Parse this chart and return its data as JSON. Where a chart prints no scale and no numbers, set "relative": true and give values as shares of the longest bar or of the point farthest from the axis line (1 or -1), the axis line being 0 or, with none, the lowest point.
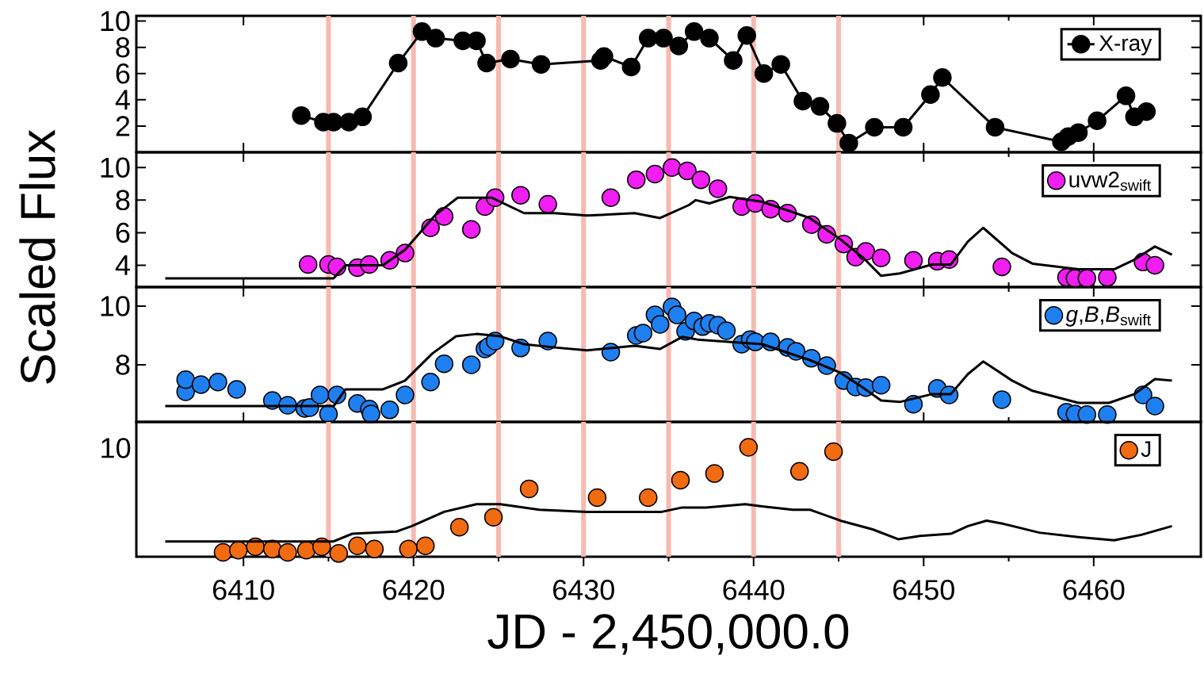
{
  "chart_data": [
    {
      "type": "line",
      "marker": "circle",
      "xlim": [
        6403.7,
        6466.3
      ],
      "ylim": [
        0,
        10.4
      ],
      "xticks": [
        6410,
        6420,
        6430,
        6440,
        6450,
        6460
      ],
      "yticks": [
        2,
        4,
        6,
        8,
        10
      ],
      "tick_labels": "y",
      "legend": "top right",
      "ref_lines": [
        {
          "axis": "x",
          "value": 6415,
          "color": "#f7b9b0"
        },
        {
          "axis": "x",
          "value": 6420,
          "color": "#f7b9b0"
        },
        {
          "axis": "x",
          "value": 6425,
          "color": "#f7b9b0"
        },
        {
          "axis": "x",
          "value": 6430,
          "color": "#f7b9b0"
        },
        {
          "axis": "x",
          "value": 6435,
          "color": "#f7b9b0"
        },
        {
          "axis": "x",
          "value": 6440,
          "color": "#f7b9b0"
        },
        {
          "axis": "x",
          "value": 6445,
          "color": "#f7b9b0"
        }
      ],
      "series": [
        {
          "name": "X-ray",
          "color": "#000000",
          "x": [
            6413.4,
            6414.7,
            6415.3,
            6416.2,
            6417.0,
            6419.1,
            6420.5,
            6421.3,
            6422.9,
            6423.7,
            6424.3,
            6425.7,
            6427.5,
            6431.0,
            6431.2,
            6432.8,
            6433.8,
            6434.7,
            6435.6,
            6436.5,
            6437.4,
            6438.8,
            6439.6,
            6440.6,
            6441.6,
            6442.9,
            6443.9,
            6444.9,
            6445.6,
            6447.1,
            6448.8,
            6450.4,
            6451.1,
            6454.2,
            6458.1,
            6458.5,
            6459.1,
            6460.2,
            6461.9,
            6462.4,
            6463.1
          ],
          "values": [
            2.8,
            2.3,
            2.3,
            2.3,
            2.7,
            6.8,
            9.2,
            8.7,
            8.5,
            8.5,
            6.8,
            7.1,
            6.7,
            7.0,
            7.3,
            6.5,
            8.7,
            8.7,
            8.1,
            9.2,
            8.7,
            7.0,
            8.9,
            6.0,
            6.7,
            3.9,
            3.5,
            2.2,
            0.7,
            1.9,
            1.9,
            4.4,
            5.7,
            1.9,
            0.8,
            1.2,
            1.5,
            2.4,
            4.3,
            2.7,
            3.1
          ]
        }
      ]
    },
    {
      "type": "scatter",
      "marker": "circle",
      "xlim": [
        6403.7,
        6466.3
      ],
      "ylim": [
        2.66,
        10.94
      ],
      "xticks": [
        6410,
        6420,
        6430,
        6440,
        6450,
        6460
      ],
      "yticks": [
        4,
        6,
        8,
        10
      ],
      "tick_labels": "y",
      "legend": "top right",
      "ylabel": "Scaled Flux",
      "ref_lines": [
        {
          "axis": "x",
          "value": 6415,
          "color": "#f7b9b0"
        },
        {
          "axis": "x",
          "value": 6420,
          "color": "#f7b9b0"
        },
        {
          "axis": "x",
          "value": 6425,
          "color": "#f7b9b0"
        },
        {
          "axis": "x",
          "value": 6430,
          "color": "#f7b9b0"
        },
        {
          "axis": "x",
          "value": 6435,
          "color": "#f7b9b0"
        },
        {
          "axis": "x",
          "value": 6440,
          "color": "#f7b9b0"
        },
        {
          "axis": "x",
          "value": 6445,
          "color": "#f7b9b0"
        }
      ],
      "series": [
        {
          "type": "line",
          "marker": "none",
          "color": "#000000",
          "x": [
            6405.4,
            6415.3,
            6416.0,
            6418.2,
            6419.5,
            6421.3,
            6422.6,
            6424.6,
            6426.5,
            6428.3,
            6430.2,
            6433.0,
            6434.5,
            6436.2,
            6436.6,
            6437.4,
            6438.6,
            6440.5,
            6443.3,
            6445.1,
            6446.5,
            6447.5,
            6448.6,
            6450.5,
            6451.6,
            6452.6,
            6453.5,
            6455.2,
            6456.4,
            6459.1,
            6461.2,
            6462.4,
            6463.6,
            6464.6
          ],
          "values": [
            3.2,
            3.2,
            4.0,
            4.0,
            4.95,
            7.1,
            8.15,
            8.15,
            7.2,
            7.2,
            7.05,
            7.2,
            6.9,
            7.7,
            8.0,
            7.8,
            8.2,
            7.9,
            6.9,
            5.6,
            4.4,
            3.35,
            3.5,
            4.05,
            4.05,
            5.45,
            6.3,
            4.75,
            4.1,
            3.75,
            3.75,
            4.35,
            5.15,
            4.65
          ]
        },
        {
          "name": "uvw2$_{swift}$",
          "color": "#f01ef0",
          "x": [
            6413.8,
            6415.0,
            6415.5,
            6416.7,
            6417.4,
            6418.6,
            6419.5,
            6421.0,
            6421.8,
            6423.4,
            6424.2,
            6424.8,
            6426.3,
            6427.9,
            6431.6,
            6433.1,
            6434.2,
            6435.2,
            6436.1,
            6436.9,
            6437.9,
            6439.3,
            6440.1,
            6441.0,
            6442.0,
            6443.4,
            6444.3,
            6445.3,
            6446.0,
            6446.6,
            6447.5,
            6449.4,
            6450.8,
            6451.5,
            6454.6,
            6458.4,
            6458.9,
            6459.6,
            6460.8,
            6462.9,
            6463.6
          ],
          "values": [
            4.05,
            4.05,
            3.9,
            3.85,
            4.05,
            4.3,
            4.75,
            6.3,
            7.0,
            6.2,
            7.6,
            8.15,
            8.3,
            7.75,
            8.15,
            9.25,
            9.6,
            10.0,
            9.8,
            9.25,
            8.7,
            7.6,
            7.8,
            7.45,
            7.2,
            6.5,
            5.9,
            5.3,
            4.5,
            4.85,
            4.45,
            4.3,
            4.25,
            4.35,
            3.9,
            3.25,
            3.2,
            3.2,
            3.25,
            4.2,
            4.0
          ]
        }
      ]
    },
    {
      "type": "scatter",
      "marker": "circle",
      "xlim": [
        6403.7,
        6466.3
      ],
      "ylim": [
        6.05,
        10.65
      ],
      "xticks": [
        6410,
        6420,
        6430,
        6440,
        6450,
        6460
      ],
      "yticks": [
        8,
        10
      ],
      "tick_labels": "y",
      "legend": "top right",
      "ref_lines": [
        {
          "axis": "x",
          "value": 6415,
          "color": "#f7b9b0"
        },
        {
          "axis": "x",
          "value": 6420,
          "color": "#f7b9b0"
        },
        {
          "axis": "x",
          "value": 6425,
          "color": "#f7b9b0"
        },
        {
          "axis": "x",
          "value": 6430,
          "color": "#f7b9b0"
        },
        {
          "axis": "x",
          "value": 6435,
          "color": "#f7b9b0"
        },
        {
          "axis": "x",
          "value": 6440,
          "color": "#f7b9b0"
        },
        {
          "axis": "x",
          "value": 6445,
          "color": "#f7b9b0"
        }
      ],
      "series": [
        {
          "type": "line",
          "marker": "none",
          "color": "#000000",
          "x": [
            6405.4,
            6415.3,
            6416.0,
            6418.2,
            6419.5,
            6421.1,
            6422.5,
            6423.7,
            6425.1,
            6426.5,
            6428.3,
            6430.2,
            6433.0,
            6434.5,
            6435.8,
            6436.7,
            6438.5,
            6440.5,
            6443.3,
            6445.1,
            6446.5,
            6447.5,
            6448.6,
            6450.5,
            6451.6,
            6452.6,
            6453.5,
            6455.2,
            6456.4,
            6459.1,
            6460.9,
            6462.4,
            6463.6,
            6464.6
          ],
          "values": [
            6.59,
            6.59,
            7.16,
            7.16,
            7.46,
            8.38,
            8.97,
            9.05,
            8.97,
            8.7,
            8.59,
            8.49,
            8.65,
            8.54,
            8.95,
            8.86,
            8.78,
            8.7,
            8.16,
            7.73,
            7.19,
            6.78,
            6.73,
            7.0,
            7.0,
            7.68,
            8.11,
            7.46,
            7.11,
            6.7,
            6.7,
            7.0,
            7.51,
            7.46
          ]
        },
        {
          "name": "*g*,*B*,*B*$_{swift}$",
          "color": "#1e80f0",
          "x": [
            6406.6,
            6406.6,
            6407.5,
            6408.5,
            6409.6,
            6411.7,
            6412.6,
            6413.6,
            6413.9,
            6414.5,
            6415.0,
            6415.5,
            6416.7,
            6417.4,
            6417.5,
            6418.6,
            6419.5,
            6421.0,
            6421.8,
            6423.4,
            6424.2,
            6424.4,
            6424.8,
            6426.3,
            6427.9,
            6431.6,
            6433.1,
            6433.5,
            6434.2,
            6434.5,
            6435.2,
            6435.5,
            6436.0,
            6436.5,
            6437.0,
            6437.4,
            6437.9,
            6438.4,
            6439.3,
            6439.8,
            6440.1,
            6441.0,
            6442.0,
            6442.5,
            6443.4,
            6444.3,
            6445.3,
            6446.0,
            6446.6,
            6447.5,
            6449.4,
            6450.8,
            6451.5,
            6454.6,
            6458.4,
            6458.9,
            6459.6,
            6460.8,
            6462.9,
            6463.6
          ],
          "values": [
            7.08,
            7.49,
            7.32,
            7.41,
            7.16,
            6.78,
            6.62,
            6.51,
            6.54,
            6.97,
            6.32,
            6.97,
            6.68,
            6.49,
            6.32,
            6.46,
            6.97,
            7.41,
            8.03,
            8.0,
            8.54,
            8.62,
            8.81,
            8.57,
            8.81,
            8.43,
            9.0,
            9.08,
            9.7,
            9.38,
            9.97,
            9.7,
            9.14,
            9.49,
            9.3,
            9.41,
            9.35,
            9.16,
            8.7,
            8.86,
            8.78,
            8.78,
            8.59,
            8.46,
            8.22,
            7.97,
            7.46,
            7.24,
            7.22,
            7.3,
            6.65,
            7.19,
            6.97,
            6.81,
            6.38,
            6.32,
            6.3,
            6.3,
            6.97,
            6.59
          ]
        }
      ]
    },
    {
      "type": "scatter",
      "marker": "circle",
      "relative": true,
      "xlim": [
        6403.7,
        6466.3
      ],
      "xticks": [
        6410,
        6420,
        6430,
        6440,
        6450,
        6460
      ],
      "annotations": [
        "10"
      ],
      "legend": "top right",
      "xlabel": "JD - 2,450,000.0",
      "ref_lines": [
        {
          "axis": "x",
          "value": 6415,
          "color": "#f7b9b0"
        },
        {
          "axis": "x",
          "value": 6420,
          "color": "#f7b9b0"
        },
        {
          "axis": "x",
          "value": 6425,
          "color": "#f7b9b0"
        },
        {
          "axis": "x",
          "value": 6430,
          "color": "#f7b9b0"
        },
        {
          "axis": "x",
          "value": 6435,
          "color": "#f7b9b0"
        },
        {
          "axis": "x",
          "value": 6440,
          "color": "#f7b9b0"
        },
        {
          "axis": "x",
          "value": 6445,
          "color": "#f7b9b0"
        }
      ],
      "series": [
        {
          "type": "line",
          "marker": "none",
          "color": "#000000",
          "x": [
            6405.4,
            6415.3,
            6416.4,
            6419.0,
            6419.9,
            6421.8,
            6423.7,
            6425.1,
            6427.4,
            6430.2,
            6433.0,
            6434.6,
            6435.8,
            6437.2,
            6439.5,
            6440.5,
            6442.3,
            6443.3,
            6445.1,
            6447.0,
            6448.5,
            6449.8,
            6451.6,
            6452.6,
            6453.7,
            6454.7,
            6456.8,
            6459.1,
            6461.2,
            6462.8,
            6464.6
          ],
          "values": [
            0.14,
            0.14,
            0.21,
            0.23,
            0.28,
            0.41,
            0.48,
            0.48,
            0.43,
            0.41,
            0.41,
            0.41,
            0.45,
            0.45,
            0.48,
            0.46,
            0.43,
            0.43,
            0.33,
            0.25,
            0.16,
            0.19,
            0.21,
            0.28,
            0.33,
            0.3,
            0.22,
            0.18,
            0.15,
            0.2,
            0.28
          ]
        },
        {
          "name": "J",
          "color": "#f26b10",
          "x": [
            6408.8,
            6409.7,
            6410.7,
            6411.7,
            6412.6,
            6413.7,
            6414.6,
            6415.6,
            6416.7,
            6417.7,
            6419.7,
            6420.7,
            6422.7,
            6424.7,
            6426.8,
            6430.8,
            6433.8,
            6435.7,
            6437.7,
            6439.7,
            6442.7,
            6444.7
          ],
          "values": [
            0.04,
            0.06,
            0.09,
            0.07,
            0.04,
            0.06,
            0.09,
            0.03,
            0.1,
            0.07,
            0.07,
            0.1,
            0.27,
            0.36,
            0.62,
            0.54,
            0.54,
            0.7,
            0.76,
            1.0,
            0.78,
            0.96
          ]
        }
      ]
    }
  ]
}
